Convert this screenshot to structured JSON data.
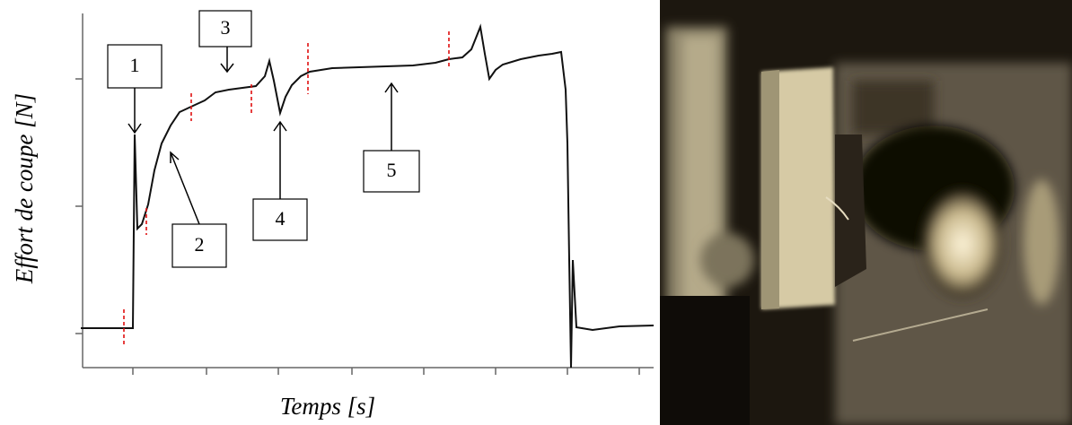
{
  "figure": {
    "y_axis_label": "Effort de coupe [N]",
    "x_axis_label": "Temps [s]",
    "annotations": [
      "1",
      "2",
      "3",
      "4",
      "5"
    ]
  }
}
